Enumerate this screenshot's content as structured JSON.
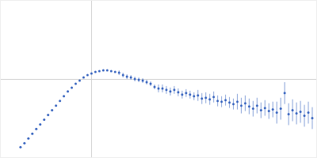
{
  "chart_data": {
    "type": "scatter",
    "color": "#3a66c0",
    "marker": "circle",
    "x": [
      0.025,
      0.03,
      0.035,
      0.04,
      0.045,
      0.05,
      0.055,
      0.06,
      0.065,
      0.07,
      0.075,
      0.08,
      0.085,
      0.09,
      0.095,
      0.1,
      0.105,
      0.11,
      0.115,
      0.12,
      0.125,
      0.13,
      0.135,
      0.14,
      0.145,
      0.15,
      0.155,
      0.16,
      0.165,
      0.17,
      0.175,
      0.18,
      0.185,
      0.19,
      0.195,
      0.2,
      0.205,
      0.21,
      0.215,
      0.22,
      0.225,
      0.23,
      0.235,
      0.24,
      0.245,
      0.25,
      0.255,
      0.26,
      0.265,
      0.27,
      0.275,
      0.28,
      0.285,
      0.29,
      0.295,
      0.3,
      0.305,
      0.31,
      0.315,
      0.32,
      0.325,
      0.33,
      0.335,
      0.34,
      0.345,
      0.35,
      0.355,
      0.36,
      0.365,
      0.37,
      0.375,
      0.38,
      0.385,
      0.39,
      0.395
    ],
    "values": [
      0.13,
      0.18,
      0.24,
      0.3,
      0.36,
      0.42,
      0.48,
      0.54,
      0.6,
      0.66,
      0.72,
      0.78,
      0.84,
      0.89,
      0.94,
      0.98,
      1.02,
      1.05,
      1.07,
      1.09,
      1.1,
      1.11,
      1.11,
      1.1,
      1.09,
      1.08,
      1.05,
      1.03,
      1.02,
      1.0,
      0.99,
      0.98,
      0.96,
      0.94,
      0.9,
      0.88,
      0.88,
      0.86,
      0.84,
      0.86,
      0.83,
      0.8,
      0.82,
      0.8,
      0.78,
      0.79,
      0.75,
      0.76,
      0.74,
      0.77,
      0.72,
      0.71,
      0.73,
      0.7,
      0.68,
      0.71,
      0.66,
      0.69,
      0.65,
      0.62,
      0.66,
      0.6,
      0.63,
      0.59,
      0.61,
      0.57,
      0.62,
      0.82,
      0.55,
      0.6,
      0.56,
      0.58,
      0.53,
      0.57,
      0.5
    ],
    "errors": [
      0.01,
      0.01,
      0.01,
      0.01,
      0.01,
      0.01,
      0.01,
      0.01,
      0.01,
      0.01,
      0.01,
      0.01,
      0.01,
      0.01,
      0.01,
      0.01,
      0.01,
      0.01,
      0.01,
      0.01,
      0.01,
      0.01,
      0.01,
      0.01,
      0.01,
      0.03,
      0.03,
      0.03,
      0.03,
      0.03,
      0.03,
      0.03,
      0.03,
      0.03,
      0.03,
      0.05,
      0.05,
      0.05,
      0.05,
      0.05,
      0.05,
      0.05,
      0.05,
      0.05,
      0.05,
      0.07,
      0.07,
      0.07,
      0.07,
      0.07,
      0.07,
      0.07,
      0.07,
      0.07,
      0.07,
      0.1,
      0.1,
      0.1,
      0.1,
      0.1,
      0.1,
      0.1,
      0.1,
      0.1,
      0.1,
      0.14,
      0.14,
      0.14,
      0.14,
      0.14,
      0.14,
      0.14,
      0.14,
      0.14,
      0.14
    ],
    "xlim": [
      0,
      0.4
    ],
    "ylim": [
      0,
      2
    ],
    "xticks": [
      0.115
    ],
    "yticks": [
      1
    ],
    "grid": true,
    "tick_labels": false
  }
}
